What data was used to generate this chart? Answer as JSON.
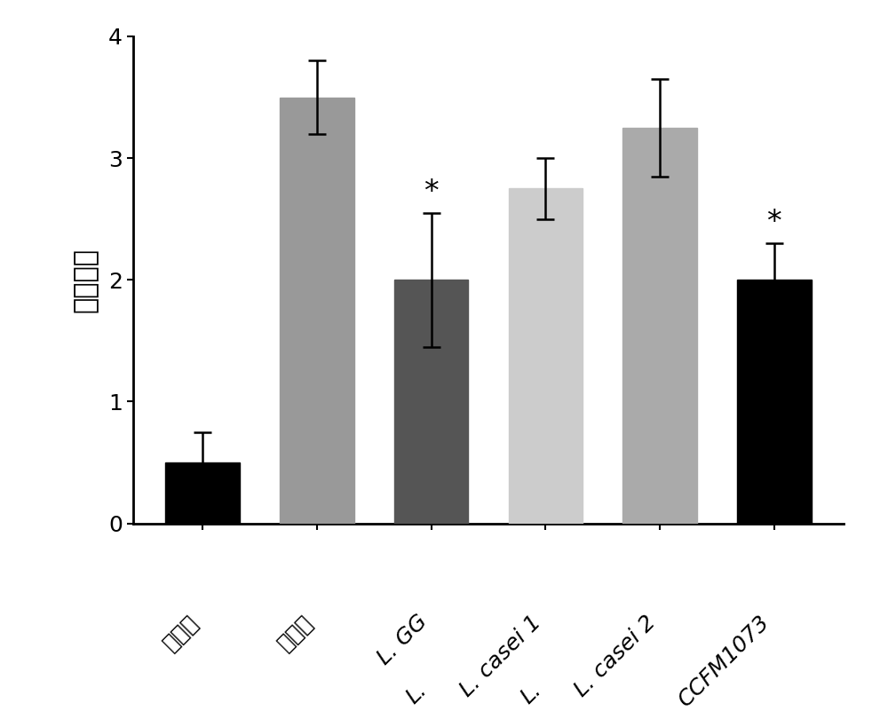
{
  "values": [
    0.5,
    3.5,
    2.0,
    2.75,
    3.25,
    2.0
  ],
  "errors": [
    0.25,
    0.3,
    0.55,
    0.25,
    0.4,
    0.3
  ],
  "bar_colors": [
    "#000000",
    "#999999",
    "#555555",
    "#cccccc",
    "#aaaaaa",
    "#000000"
  ],
  "significance": [
    false,
    false,
    true,
    false,
    false,
    true
  ],
  "ylabel": "炎症得分",
  "ylim": [
    0,
    4
  ],
  "yticks": [
    0,
    1,
    2,
    3,
    4
  ],
  "ylabel_fontsize": 22,
  "tick_fontsize": 18,
  "star_fontsize": 24,
  "bar_width": 0.65,
  "background_color": "#ffffff",
  "x_labels_top": [
    "空白组",
    "模型组",
    "L. GG",
    "L. casei 1",
    "L. casei 2",
    "CCFM1073"
  ],
  "x_labels_bottom": [
    "",
    "",
    "L.",
    "L.",
    "",
    ""
  ],
  "spine_linewidth": 2.0
}
